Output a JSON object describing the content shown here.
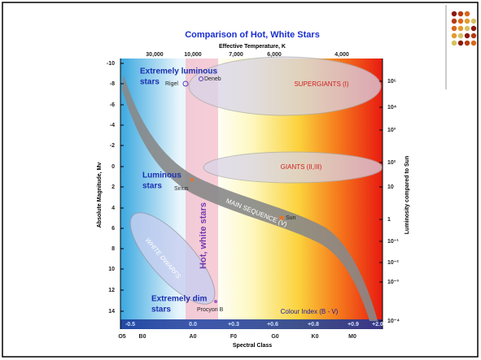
{
  "title": "Comparison of Hot, White Stars",
  "top_axis": {
    "label": "Effective Temperature, K",
    "ticks": [
      "30,000",
      "10,000",
      "7,000",
      "6,000",
      "4,000"
    ]
  },
  "left_axis": {
    "label": "Absolute Magnitude, Mv",
    "ticks": [
      "-10",
      "-8",
      "-6",
      "-4",
      "-2",
      "0",
      "2",
      "4",
      "6",
      "8",
      "10",
      "12",
      "14"
    ]
  },
  "right_axis": {
    "label": "Luminosity compared to Sun",
    "ticks": [
      "10⁵",
      "10⁴",
      "10³",
      "10²",
      "10",
      "1",
      "10⁻¹",
      "10⁻²",
      "10⁻³",
      "10⁻⁴"
    ]
  },
  "bottom_axis": {
    "label": "Spectral Class",
    "ticks": [
      "O5",
      "B0",
      "A0",
      "F0",
      "G0",
      "K0",
      "M0"
    ]
  },
  "colour_index": {
    "label": "Colour Index (B - V)",
    "ticks": [
      "-0.5",
      "0.0",
      "+0.3",
      "+0.6",
      "+0.8",
      "+0.9",
      "+2.0"
    ]
  },
  "regions": {
    "supergiants": "SUPERGIANTS (I)",
    "giants": "GIANTS (II,III)",
    "main_sequence": "MAIN SEQUENCE (V)",
    "white_dwarfs": "WHITE DWARFS",
    "hot_white": "Hot, white stars"
  },
  "groups": {
    "extremely_luminous": [
      "Extremely luminous",
      "stars"
    ],
    "luminous": [
      "Luminous",
      "stars"
    ],
    "extremely_dim": [
      "Extremely dim",
      "stars"
    ]
  },
  "stars": [
    "Rigel",
    "Deneb",
    "Sirius",
    "Sun",
    "Procyon B"
  ]
}
